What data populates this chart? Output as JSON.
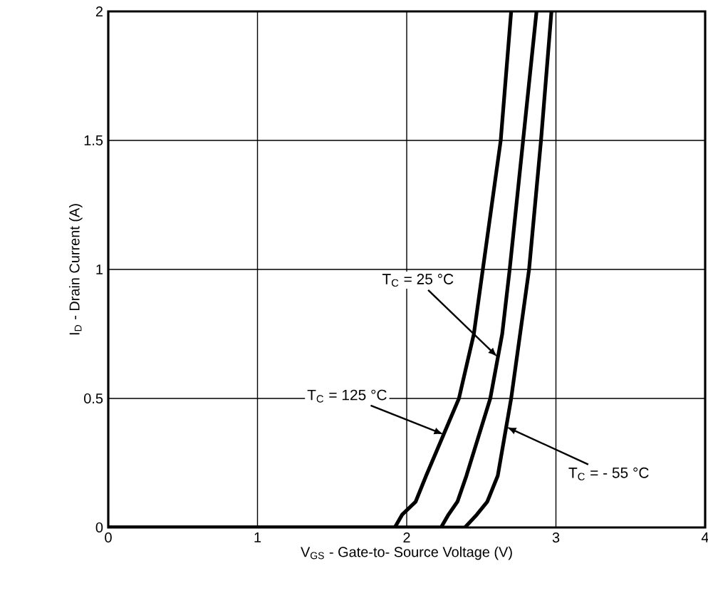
{
  "chart_data": {
    "type": "line",
    "xlabel": "V$_{GS}$ - Gate-to- Source Voltage (V)",
    "ylabel": "I$_{D}$ - Drain Current (A)",
    "xlim": [
      0,
      4
    ],
    "ylim": [
      0,
      2
    ],
    "xticks": [
      0,
      1,
      2,
      3,
      4
    ],
    "yticks": [
      0,
      0.5,
      1,
      1.5,
      2
    ],
    "grid": true,
    "legend": false,
    "marker": "none",
    "line_style": "solid",
    "series": [
      {
        "color": "#000000",
        "x": [
          0,
          1.92,
          1.97,
          2.06,
          2.13,
          2.35,
          2.45,
          2.51,
          2.63,
          2.7
        ],
        "values": [
          0,
          0,
          0.05,
          0.1,
          0.2,
          0.5,
          0.75,
          1,
          1.5,
          2
        ]
      },
      {
        "color": "#000000",
        "x": [
          0,
          2.23,
          2.28,
          2.34,
          2.4,
          2.56,
          2.64,
          2.69,
          2.78,
          2.87
        ],
        "values": [
          0,
          0,
          0.05,
          0.1,
          0.2,
          0.5,
          0.75,
          1,
          1.5,
          2
        ]
      },
      {
        "color": "#000000",
        "x": [
          0,
          2.39,
          2.47,
          2.54,
          2.61,
          2.7,
          2.76,
          2.82,
          2.9,
          2.97
        ],
        "values": [
          0,
          0,
          0.05,
          0.1,
          0.2,
          0.5,
          0.75,
          1,
          1.5,
          2
        ]
      }
    ],
    "annotations": [
      {
        "text": "T$_{C}$ = 25 °C",
        "x": 2.61,
        "y": 0.66
      },
      {
        "text": "T$_{C}$ = 125 °C",
        "x": 2.25,
        "y": 0.36
      },
      {
        "text": "T$_{C}$ = - 55 °C",
        "x": 2.667,
        "y": 0.39
      }
    ]
  }
}
